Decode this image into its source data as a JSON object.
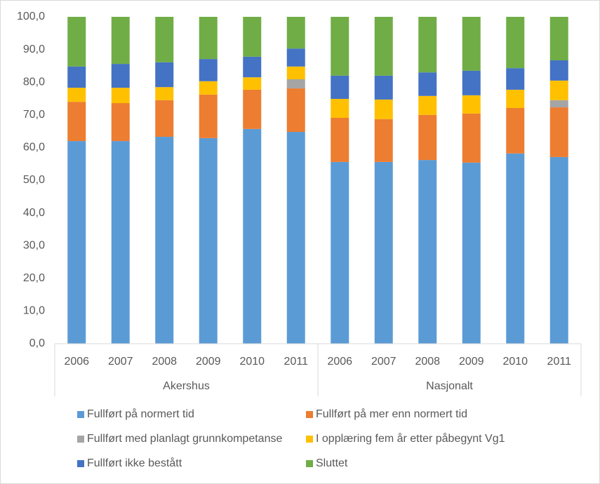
{
  "chart_data": {
    "type": "stacked_bar",
    "categories": [
      "2006",
      "2007",
      "2008",
      "2009",
      "2010",
      "2011",
      "2006",
      "2007",
      "2008",
      "2009",
      "2010",
      "2011"
    ],
    "groups": [
      "Akershus",
      "Nasjonalt"
    ],
    "series": [
      {
        "name": "Fullført på normert tid",
        "color": "#5b9bd5",
        "values": [
          62.0,
          62.0,
          63.3,
          62.9,
          65.7,
          64.8,
          55.6,
          55.6,
          56.2,
          55.4,
          58.2,
          57.1
        ]
      },
      {
        "name": "Fullført på mer enn normert tid",
        "color": "#ed7d31",
        "values": [
          12.0,
          11.6,
          11.2,
          13.3,
          12.0,
          13.3,
          13.5,
          13.1,
          13.8,
          15.0,
          13.9,
          15.2
        ]
      },
      {
        "name": "Fullført med planlagt grunnkompetanse",
        "color": "#a5a5a5",
        "values": [
          0,
          0,
          0,
          0,
          0,
          2.8,
          0,
          0,
          0,
          0,
          0,
          2.2
        ]
      },
      {
        "name": "I opplæring fem år etter påbegynt Vg1",
        "color": "#ffc000",
        "values": [
          4.3,
          4.7,
          4.0,
          4.1,
          3.8,
          3.9,
          5.8,
          6.0,
          5.8,
          5.6,
          5.6,
          6.0
        ]
      },
      {
        "name": "Fullført ikke bestått",
        "color": "#4472c4",
        "values": [
          6.5,
          7.3,
          7.6,
          6.8,
          6.3,
          5.5,
          7.1,
          7.3,
          7.2,
          7.5,
          6.6,
          6.2
        ]
      },
      {
        "name": "Sluttet",
        "color": "#70ad47",
        "values": [
          15.2,
          14.4,
          13.9,
          12.9,
          12.2,
          9.7,
          18.0,
          18.0,
          17.0,
          16.5,
          15.7,
          13.3
        ]
      }
    ],
    "ylim": [
      0,
      100
    ],
    "yticks": [
      {
        "value": 0,
        "label": "0,0"
      },
      {
        "value": 10,
        "label": "10,0"
      },
      {
        "value": 20,
        "label": "20,0"
      },
      {
        "value": 30,
        "label": "30,0"
      },
      {
        "value": 40,
        "label": "40,0"
      },
      {
        "value": 50,
        "label": "50,0"
      },
      {
        "value": 60,
        "label": "60,0"
      },
      {
        "value": 70,
        "label": "70,0"
      },
      {
        "value": 80,
        "label": "80,0"
      },
      {
        "value": 90,
        "label": "90,0"
      },
      {
        "value": 100,
        "label": "100,0"
      }
    ],
    "legend_columns": 2
  }
}
